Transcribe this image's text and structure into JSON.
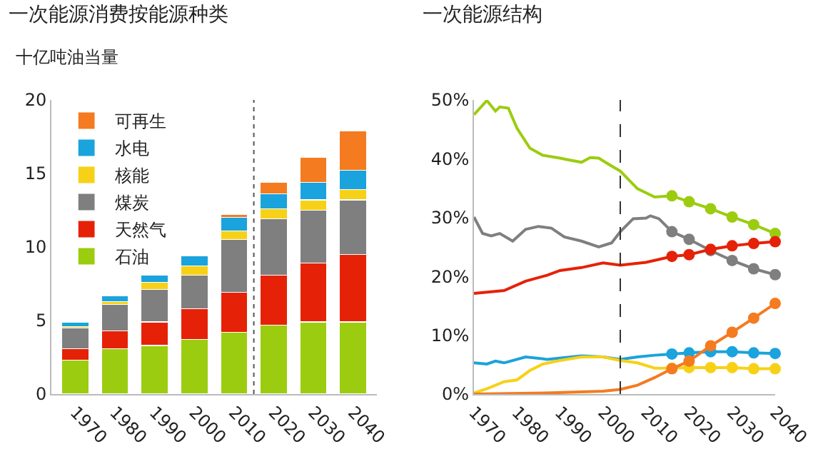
{
  "chart_data": [
    {
      "type": "bar",
      "title": "一次能源消费按能源种类",
      "ylabel": "十亿吨油当量",
      "stacked": true,
      "legend": "top left",
      "x": [
        1970,
        1980,
        1990,
        2000,
        2010,
        2020,
        2030,
        2040
      ],
      "xlim": [
        1964,
        2046
      ],
      "xticks": [
        1970,
        1980,
        1990,
        2000,
        2010,
        2020,
        2030,
        2040
      ],
      "ylim": [
        0,
        20
      ],
      "yticks": [
        0,
        5,
        10,
        15,
        20
      ],
      "ref_lines": [
        {
          "axis": "x",
          "value": 2015,
          "color": "#555555",
          "line_style": "dotted"
        }
      ],
      "series": [
        {
          "name": "石油",
          "color": "#9ccc10",
          "values": [
            2.3,
            3.1,
            3.3,
            3.7,
            4.2,
            4.7,
            4.9,
            4.9
          ]
        },
        {
          "name": "天然气",
          "color": "#e52207",
          "values": [
            0.8,
            1.2,
            1.6,
            2.1,
            2.7,
            3.4,
            4.0,
            4.6
          ]
        },
        {
          "name": "煤炭",
          "color": "#7f7f7f",
          "values": [
            1.4,
            1.8,
            2.2,
            2.3,
            3.6,
            3.8,
            3.6,
            3.7
          ]
        },
        {
          "name": "核能",
          "color": "#f7d117",
          "values": [
            0.1,
            0.2,
            0.5,
            0.6,
            0.6,
            0.7,
            0.7,
            0.7
          ]
        },
        {
          "name": "水电",
          "color": "#1aa3dc",
          "values": [
            0.3,
            0.4,
            0.5,
            0.7,
            0.9,
            1.0,
            1.2,
            1.3
          ]
        },
        {
          "name": "可再生",
          "color": "#f47b20",
          "values": [
            null,
            null,
            null,
            null,
            0.2,
            0.8,
            1.7,
            2.7
          ]
        }
      ]
    },
    {
      "type": "line",
      "title": "一次能源结构",
      "legend": false,
      "xlim": [
        1970,
        2040
      ],
      "xticks": [
        1970,
        1980,
        1990,
        2000,
        2010,
        2020,
        2030,
        2040
      ],
      "ylim": [
        0,
        50
      ],
      "yticks": [
        {
          "value": 0,
          "label": "0%"
        },
        {
          "value": 10,
          "label": "10%"
        },
        {
          "value": 20,
          "label": "20%"
        },
        {
          "value": 30,
          "label": "30%"
        },
        {
          "value": 40,
          "label": "40%"
        },
        {
          "value": 50,
          "label": "50%"
        }
      ],
      "ref_lines": [
        {
          "axis": "x",
          "value": 2004,
          "color": "#333333",
          "line_style": "dashed"
        }
      ],
      "series": [
        {
          "color": "#9ccc10",
          "x": [
            1970,
            1973,
            1975,
            1976,
            1978,
            1980,
            1983,
            1985,
            1986,
            1990,
            1992,
            1995,
            1997,
            1999,
            2001,
            2004,
            2008,
            2012,
            2016
          ],
          "values": [
            47.5,
            49.9,
            48.1,
            48.8,
            48.6,
            45.2,
            41.8,
            41.0,
            40.6,
            40.1,
            39.8,
            39.4,
            40.2,
            40.1,
            39.2,
            37.9,
            34.9,
            33.5,
            33.7
          ]
        },
        {
          "color": "#9ccc10",
          "marker": "circle",
          "x": [
            2016,
            2020,
            2025,
            2030,
            2035,
            2040
          ],
          "values": [
            33.7,
            32.7,
            31.5,
            30.1,
            28.8,
            27.3
          ]
        },
        {
          "color": "#7f7f7f",
          "x": [
            1970,
            1972,
            1974,
            1976,
            1979,
            1982,
            1985,
            1988,
            1991,
            1995,
            1999,
            2002,
            2004,
            2007,
            2010,
            2011,
            2013,
            2016
          ],
          "values": [
            30.1,
            27.3,
            26.9,
            27.3,
            26.0,
            28.0,
            28.5,
            28.2,
            26.7,
            26.0,
            25.0,
            25.7,
            27.6,
            29.8,
            29.9,
            30.3,
            29.8,
            27.6
          ]
        },
        {
          "color": "#7f7f7f",
          "marker": "circle",
          "x": [
            2016,
            2020,
            2025,
            2030,
            2035,
            2040
          ],
          "values": [
            27.6,
            26.3,
            24.4,
            22.7,
            21.3,
            20.3
          ]
        },
        {
          "color": "#e52207",
          "x": [
            1970,
            1977,
            1982,
            1987,
            1990,
            1995,
            2000,
            2004,
            2010,
            2016
          ],
          "values": [
            17.1,
            17.6,
            19.2,
            20.2,
            21.0,
            21.5,
            22.3,
            21.9,
            22.4,
            23.4
          ]
        },
        {
          "color": "#e52207",
          "marker": "circle",
          "x": [
            2016,
            2020,
            2025,
            2030,
            2035,
            2040
          ],
          "values": [
            23.4,
            23.7,
            24.6,
            25.2,
            25.6,
            25.9
          ]
        },
        {
          "color": "#1aa3dc",
          "x": [
            1970,
            1973,
            1975,
            1977,
            1982,
            1987,
            1995,
            2000,
            2004,
            2008,
            2012,
            2016
          ],
          "values": [
            5.3,
            5.1,
            5.6,
            5.3,
            6.3,
            5.9,
            6.5,
            6.3,
            5.9,
            6.3,
            6.6,
            6.8
          ]
        },
        {
          "color": "#1aa3dc",
          "marker": "circle",
          "x": [
            2016,
            2020,
            2025,
            2030,
            2035,
            2040
          ],
          "values": [
            6.8,
            7.0,
            7.2,
            7.2,
            7.0,
            6.9
          ]
        },
        {
          "color": "#f7d117",
          "x": [
            1970,
            1973,
            1977,
            1980,
            1983,
            1986,
            1990,
            1995,
            2000,
            2004,
            2008,
            2012,
            2016
          ],
          "values": [
            0.2,
            0.9,
            2.1,
            2.4,
            4.0,
            5.1,
            5.7,
            6.3,
            6.3,
            5.7,
            5.3,
            4.4,
            4.4
          ]
        },
        {
          "color": "#f7d117",
          "marker": "circle",
          "x": [
            2016,
            2020,
            2025,
            2030,
            2035,
            2040
          ],
          "values": [
            4.4,
            4.5,
            4.5,
            4.5,
            4.3,
            4.3
          ]
        },
        {
          "color": "#f47b20",
          "x": [
            1970,
            1988,
            2000,
            2004,
            2008,
            2012,
            2016
          ],
          "values": [
            0,
            0.2,
            0.5,
            0.8,
            1.5,
            2.8,
            4.3
          ]
        },
        {
          "color": "#f47b20",
          "marker": "circle",
          "x": [
            2016,
            2020,
            2025,
            2030,
            2035,
            2040
          ],
          "values": [
            4.3,
            5.6,
            8.2,
            10.5,
            12.9,
            15.4
          ]
        }
      ]
    }
  ]
}
